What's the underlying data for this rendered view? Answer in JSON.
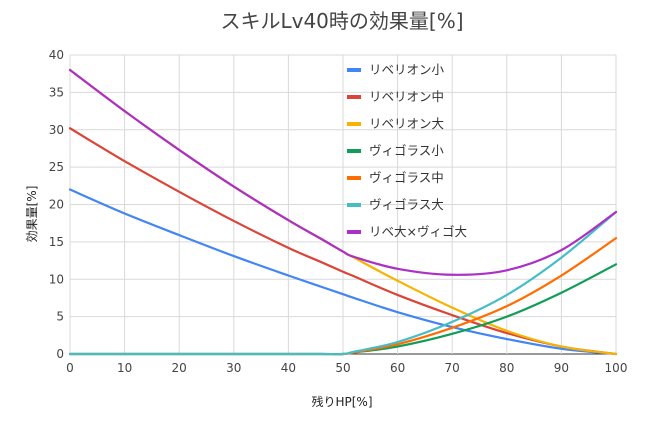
{
  "chart_data": {
    "type": "line",
    "title": "スキルLv40時の効果量[%]",
    "xlabel": "残りHP[%]",
    "ylabel": "効果量[%]",
    "xlim": [
      0,
      100
    ],
    "ylim": [
      0,
      40
    ],
    "xticks": [
      0,
      10,
      20,
      30,
      40,
      50,
      60,
      70,
      80,
      90,
      100
    ],
    "yticks": [
      0,
      5,
      10,
      15,
      20,
      25,
      30,
      35,
      40
    ],
    "grid": true,
    "legend_position": "top-right inside plot",
    "x": [
      0,
      10,
      20,
      30,
      40,
      46,
      50,
      52,
      60,
      70,
      80,
      90,
      100
    ],
    "series": [
      {
        "name": "リベリオン小",
        "color": "#4285F4",
        "values": [
          22.0,
          18.8,
          15.9,
          13.1,
          10.5,
          9.0,
          8.0,
          7.5,
          5.6,
          3.6,
          2.0,
          0.7,
          0.0
        ]
      },
      {
        "name": "リベリオン中",
        "color": "#DB4437",
        "values": [
          30.2,
          25.8,
          21.7,
          17.8,
          14.2,
          12.3,
          11.0,
          10.4,
          7.9,
          5.2,
          2.8,
          1.0,
          0.0
        ]
      },
      {
        "name": "リベリオン大",
        "color": "#F4B400",
        "values": [
          38.0,
          32.5,
          27.3,
          22.4,
          17.9,
          15.4,
          13.7,
          12.9,
          9.8,
          6.2,
          3.1,
          1.0,
          0.0
        ]
      },
      {
        "name": "ヴィゴラス小",
        "color": "#0F9D58",
        "values": [
          0.0,
          0.0,
          0.0,
          0.0,
          0.0,
          0.0,
          0.0,
          0.2,
          1.0,
          2.7,
          5.0,
          8.2,
          12.0
        ]
      },
      {
        "name": "ヴィゴラス中",
        "color": "#FF6D01",
        "values": [
          0.0,
          0.0,
          0.0,
          0.0,
          0.0,
          0.0,
          0.0,
          0.2,
          1.3,
          3.5,
          6.4,
          10.5,
          15.5
        ]
      },
      {
        "name": "ヴィゴラス大",
        "color": "#46BDC6",
        "values": [
          0.0,
          0.0,
          0.0,
          0.0,
          0.0,
          0.0,
          0.0,
          0.3,
          1.6,
          4.3,
          7.9,
          12.9,
          19.0
        ]
      },
      {
        "name": "リベ大×ヴィゴ大",
        "color": "#AB30C4",
        "values": [
          38.0,
          32.5,
          27.3,
          22.4,
          17.9,
          15.4,
          13.7,
          13.0,
          11.4,
          10.6,
          11.2,
          13.9,
          19.0
        ]
      }
    ]
  }
}
